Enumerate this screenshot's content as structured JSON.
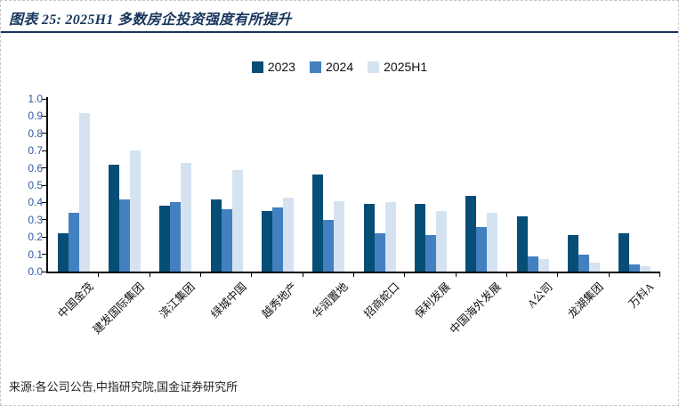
{
  "header": {
    "title": "图表 25: 2025H1 多数房企投资强度有所提升"
  },
  "footer": {
    "source": "来源:各公司公告,中指研究院,国金证券研究所"
  },
  "colors": {
    "title_navy": "#17365d",
    "axis_black": "#000000",
    "ytick_label_blue": "#2f5ba6",
    "series_2023": "#064e76",
    "series_2024": "#4380bf",
    "series_2025h1": "#d5e3f1"
  },
  "chart_data": {
    "type": "bar",
    "title": "图表 25: 2025H1 多数房企投资强度有所提升",
    "xlabel": "",
    "ylabel": "",
    "ylim": [
      0,
      1.0
    ],
    "yticks": [
      "1.0",
      "0.9",
      "0.8",
      "0.7",
      "0.6",
      "0.5",
      "0.4",
      "0.3",
      "0.2",
      "0.1",
      "0.0"
    ],
    "grid": false,
    "legend_position": "top-center",
    "categories": [
      "中国金茂",
      "建发国际集团",
      "滨江集团",
      "绿城中国",
      "越秀地产",
      "华润置地",
      "招商蛇口",
      "保利发展",
      "中国海外发展",
      "A公司",
      "龙湖集团",
      "万科A"
    ],
    "series": [
      {
        "name": "2023",
        "color": "#064e76",
        "values": [
          0.22,
          0.62,
          0.38,
          0.42,
          0.35,
          0.56,
          0.39,
          0.39,
          0.44,
          0.32,
          0.21,
          0.22
        ]
      },
      {
        "name": "2024",
        "color": "#4380bf",
        "values": [
          0.34,
          0.42,
          0.4,
          0.36,
          0.37,
          0.3,
          0.22,
          0.21,
          0.26,
          0.09,
          0.1,
          0.04
        ]
      },
      {
        "name": "2025H1",
        "color": "#d5e3f1",
        "values": [
          0.92,
          0.7,
          0.63,
          0.59,
          0.43,
          0.41,
          0.4,
          0.35,
          0.34,
          0.07,
          0.05,
          0.03
        ]
      }
    ]
  }
}
